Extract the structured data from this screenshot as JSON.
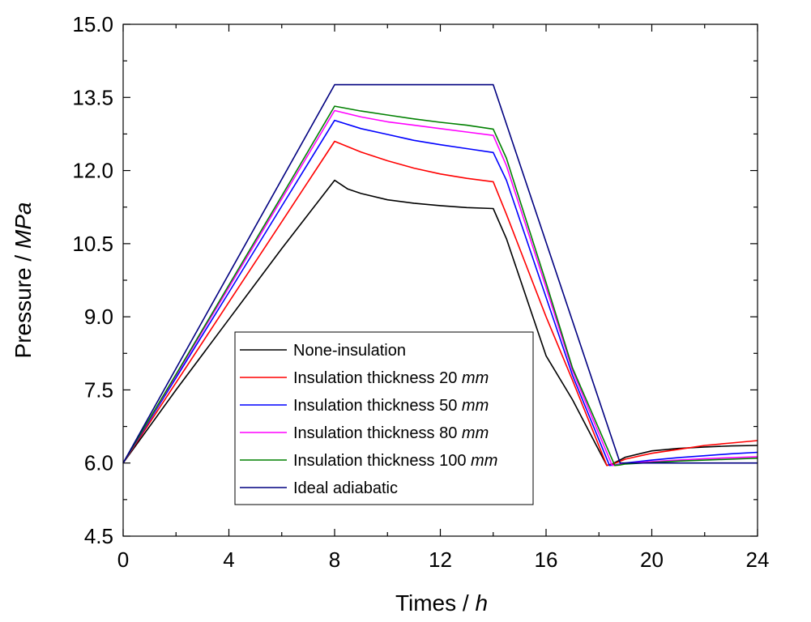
{
  "chart_data": {
    "type": "line",
    "xlabel": "Times / ",
    "xlabel_unit": "h",
    "ylabel": "Pressure / ",
    "ylabel_unit": "MPa",
    "xlim": [
      0,
      24
    ],
    "ylim": [
      4.5,
      15.0
    ],
    "xticks": [
      "0",
      "4",
      "8",
      "12",
      "16",
      "20",
      "24"
    ],
    "yticks": [
      "4.5",
      "6.0",
      "7.5",
      "9.0",
      "10.5",
      "12.0",
      "13.5",
      "15.0"
    ],
    "legend_position": "bottom-center",
    "series": [
      {
        "name": "None-insulation",
        "label_text": "None-insulation",
        "label_unit": "",
        "color": "#000000",
        "points": [
          [
            0,
            6.0
          ],
          [
            2,
            7.5
          ],
          [
            4,
            8.95
          ],
          [
            6,
            10.4
          ],
          [
            8,
            11.8
          ],
          [
            8.5,
            11.62
          ],
          [
            9,
            11.53
          ],
          [
            10,
            11.4
          ],
          [
            11,
            11.33
          ],
          [
            12,
            11.28
          ],
          [
            13,
            11.24
          ],
          [
            14,
            11.22
          ],
          [
            14.5,
            10.6
          ],
          [
            16,
            8.2
          ],
          [
            17,
            7.3
          ],
          [
            18.3,
            5.95
          ],
          [
            18.5,
            5.98
          ],
          [
            19,
            6.12
          ],
          [
            20,
            6.25
          ],
          [
            21,
            6.3
          ],
          [
            22,
            6.33
          ],
          [
            23,
            6.35
          ],
          [
            24,
            6.36
          ]
        ]
      },
      {
        "name": "Insulation thickness 20 mm",
        "label_text": "Insulation thickness 20 ",
        "label_unit": "mm",
        "color": "#ff0000",
        "points": [
          [
            0,
            6.0
          ],
          [
            2,
            7.65
          ],
          [
            4,
            9.3
          ],
          [
            6,
            10.95
          ],
          [
            8,
            12.6
          ],
          [
            9,
            12.38
          ],
          [
            10,
            12.2
          ],
          [
            11,
            12.05
          ],
          [
            12,
            11.93
          ],
          [
            13,
            11.84
          ],
          [
            14,
            11.77
          ],
          [
            14.5,
            11.1
          ],
          [
            16,
            9.0
          ],
          [
            17,
            7.7
          ],
          [
            18.3,
            5.95
          ],
          [
            18.5,
            5.97
          ],
          [
            19,
            6.08
          ],
          [
            20,
            6.2
          ],
          [
            21,
            6.28
          ],
          [
            22,
            6.36
          ],
          [
            23,
            6.41
          ],
          [
            24,
            6.46
          ]
        ]
      },
      {
        "name": "Insulation thickness 50 mm",
        "label_text": "Insulation thickness 50 ",
        "label_unit": "mm",
        "color": "#0000ff",
        "points": [
          [
            0,
            6.0
          ],
          [
            2,
            7.75
          ],
          [
            4,
            9.5
          ],
          [
            6,
            11.27
          ],
          [
            8,
            13.03
          ],
          [
            9,
            12.86
          ],
          [
            10,
            12.74
          ],
          [
            11,
            12.62
          ],
          [
            12,
            12.53
          ],
          [
            13,
            12.45
          ],
          [
            14,
            12.37
          ],
          [
            14.5,
            11.8
          ],
          [
            16,
            9.4
          ],
          [
            17,
            7.8
          ],
          [
            18.4,
            5.95
          ],
          [
            18.6,
            5.96
          ],
          [
            19,
            6.0
          ],
          [
            20,
            6.06
          ],
          [
            21,
            6.11
          ],
          [
            22,
            6.15
          ],
          [
            23,
            6.19
          ],
          [
            24,
            6.22
          ]
        ]
      },
      {
        "name": "Insulation thickness 80 mm",
        "label_text": "Insulation thickness 80 ",
        "label_unit": "mm",
        "color": "#ff00ff",
        "points": [
          [
            0,
            6.0
          ],
          [
            2,
            7.8
          ],
          [
            4,
            9.6
          ],
          [
            6,
            11.42
          ],
          [
            8,
            13.23
          ],
          [
            9,
            13.1
          ],
          [
            10,
            13.0
          ],
          [
            11,
            12.93
          ],
          [
            12,
            12.86
          ],
          [
            13,
            12.79
          ],
          [
            14,
            12.72
          ],
          [
            14.5,
            12.1
          ],
          [
            16,
            9.6
          ],
          [
            17,
            7.9
          ],
          [
            18.5,
            5.95
          ],
          [
            18.7,
            5.96
          ],
          [
            19,
            5.99
          ],
          [
            20,
            6.03
          ],
          [
            21,
            6.06
          ],
          [
            22,
            6.09
          ],
          [
            23,
            6.11
          ],
          [
            24,
            6.13
          ]
        ]
      },
      {
        "name": "Insulation thickness 100 mm",
        "label_text": "Insulation thickness 100 ",
        "label_unit": "mm",
        "color": "#008000",
        "points": [
          [
            0,
            6.0
          ],
          [
            2,
            7.82
          ],
          [
            4,
            9.65
          ],
          [
            6,
            11.48
          ],
          [
            8,
            13.32
          ],
          [
            9,
            13.22
          ],
          [
            10,
            13.14
          ],
          [
            11,
            13.06
          ],
          [
            12,
            12.99
          ],
          [
            13,
            12.93
          ],
          [
            14,
            12.85
          ],
          [
            14.5,
            12.25
          ],
          [
            16,
            9.7
          ],
          [
            17,
            7.95
          ],
          [
            18.6,
            5.95
          ],
          [
            18.8,
            5.96
          ],
          [
            19,
            5.98
          ],
          [
            20,
            6.01
          ],
          [
            21,
            6.04
          ],
          [
            22,
            6.06
          ],
          [
            23,
            6.08
          ],
          [
            24,
            6.1
          ]
        ]
      },
      {
        "name": "Ideal adiabatic",
        "label_text": "Ideal adiabatic",
        "label_unit": "",
        "color": "#000080",
        "points": [
          [
            0,
            6.0
          ],
          [
            8,
            13.76
          ],
          [
            14,
            13.76
          ],
          [
            18.8,
            6.0
          ],
          [
            24,
            6.0
          ]
        ]
      }
    ]
  }
}
